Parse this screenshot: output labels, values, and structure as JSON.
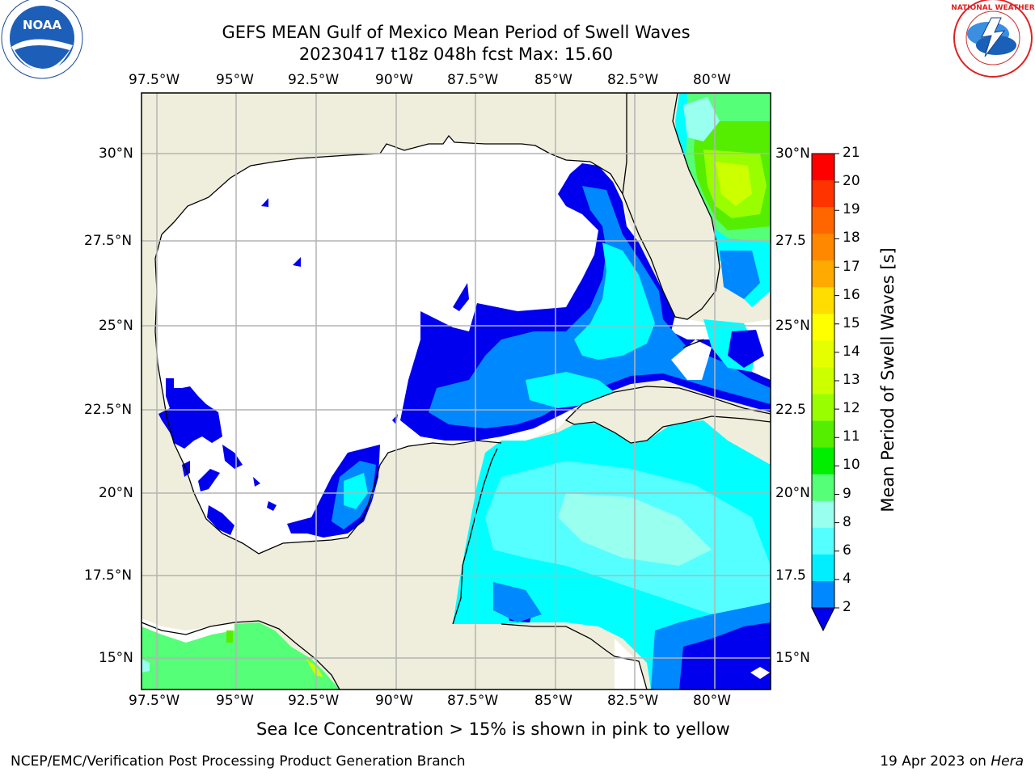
{
  "title": {
    "line1": "GEFS MEAN Gulf of Mexico Mean Period of Swell Waves",
    "line2": "20230417 t18z 048h fcst   Max: 15.60"
  },
  "map": {
    "lon_labels": [
      "97.5°W",
      "95°W",
      "92.5°W",
      "90°W",
      "87.5°W",
      "85°W",
      "82.5°W",
      "80°W"
    ],
    "lat_labels_left": [
      "30°N",
      "27.5°N",
      "25°N",
      "22.5°N",
      "20°N",
      "17.5°N",
      "15°N"
    ],
    "lat_labels_right": [
      "30°N",
      "27.5",
      "25°N",
      "22.5",
      "20°N",
      "17.5",
      "15°N"
    ],
    "colors": {
      "land": "#efeedc",
      "water_none": "#ffffff",
      "coast": "#000000",
      "grid": "#b4b4b4"
    }
  },
  "colorbar": {
    "title": "Mean Period of Swell Waves [s]",
    "tick_labels": [
      "21",
      "20",
      "19",
      "18",
      "17",
      "16",
      "15",
      "14",
      "13",
      "12",
      "11",
      "10",
      "9",
      "8",
      "6",
      "4",
      "2"
    ],
    "colors": [
      "#ff0000",
      "#ff3300",
      "#ff6600",
      "#ff8800",
      "#ffaa00",
      "#ffdd00",
      "#ffff00",
      "#e6ff00",
      "#ccff00",
      "#99ff00",
      "#55ee00",
      "#00ee00",
      "#55ff77",
      "#99ffee",
      "#55ffff",
      "#00eeff",
      "#0088ff",
      "#0000ee"
    ]
  },
  "footnote": "Sea Ice Concentration > 15% is shown in pink to yellow",
  "footer": {
    "left": "NCEP/EMC/Verification Post Processing Product Generation Branch",
    "right_date": "19 Apr 2023 on ",
    "right_host": "Hera"
  },
  "logos": {
    "left": "noaa-logo",
    "right": "nws-logo"
  }
}
